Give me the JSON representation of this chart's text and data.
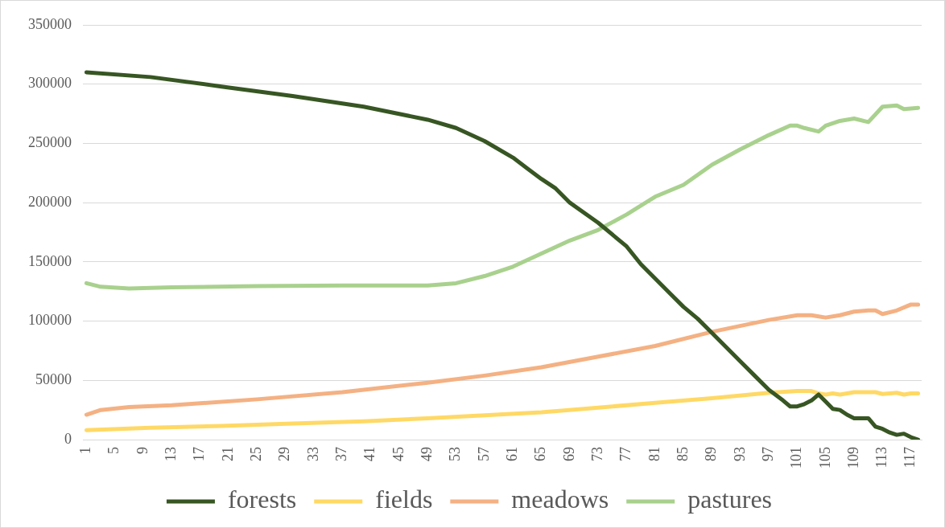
{
  "chart_data": {
    "type": "line",
    "xlim": [
      0.5,
      118.5
    ],
    "xticks": [
      1,
      5,
      9,
      13,
      17,
      21,
      25,
      29,
      33,
      37,
      41,
      45,
      49,
      53,
      57,
      61,
      65,
      69,
      73,
      77,
      81,
      85,
      89,
      93,
      97,
      101,
      105,
      109,
      113,
      117
    ],
    "ylim": [
      0,
      350000
    ],
    "yticks": [
      0,
      50000,
      100000,
      150000,
      200000,
      250000,
      300000,
      350000
    ],
    "grid": "y",
    "legend": "bottom",
    "series": [
      {
        "name": "forests",
        "color": "#375623",
        "x": [
          1,
          10,
          20,
          30,
          40,
          49,
          53,
          57,
          61,
          63,
          65,
          67,
          69,
          73,
          77,
          79,
          81,
          83,
          85,
          87,
          89,
          91,
          93,
          95,
          97,
          99,
          100,
          101,
          102,
          103,
          104,
          105,
          106,
          107,
          108,
          109,
          110,
          111,
          112,
          113,
          114,
          115,
          116,
          117,
          118
        ],
        "values": [
          310000,
          306000,
          298000,
          290000,
          281000,
          270000,
          263000,
          252000,
          238000,
          229000,
          220000,
          212000,
          200000,
          183000,
          163000,
          148000,
          136000,
          124000,
          112000,
          102000,
          90000,
          78000,
          66000,
          54000,
          42000,
          33000,
          28000,
          28000,
          30000,
          33000,
          38000,
          32000,
          26000,
          25000,
          21000,
          18000,
          18000,
          18000,
          11000,
          9000,
          6000,
          4000,
          5000,
          2000,
          0
        ]
      },
      {
        "name": "fields",
        "color": "#ffd966",
        "x": [
          1,
          10,
          20,
          30,
          40,
          49,
          57,
          65,
          73,
          81,
          89,
          97,
          101,
          103,
          104,
          105,
          106,
          107,
          108,
          109,
          110,
          111,
          112,
          113,
          114,
          115,
          116,
          117,
          118
        ],
        "values": [
          8000,
          10000,
          11500,
          13500,
          15500,
          18000,
          20500,
          23000,
          27000,
          31000,
          35000,
          39500,
          41000,
          41000,
          39000,
          38000,
          39000,
          38000,
          39000,
          40000,
          40000,
          40000,
          40000,
          38500,
          39000,
          39500,
          38000,
          39000,
          39000
        ]
      },
      {
        "name": "meadows",
        "color": "#f4b183",
        "x": [
          1,
          3,
          7,
          13,
          25,
          37,
          49,
          57,
          65,
          73,
          81,
          89,
          97,
          101,
          103,
          104,
          105,
          107,
          109,
          111,
          112,
          113,
          115,
          117,
          118
        ],
        "values": [
          21000,
          25000,
          27500,
          29000,
          34000,
          40000,
          48000,
          54000,
          61000,
          70000,
          79000,
          91000,
          101000,
          105000,
          105000,
          104000,
          103000,
          105000,
          108000,
          109000,
          109000,
          106000,
          109000,
          114000,
          114000
        ]
      },
      {
        "name": "pastures",
        "color": "#a9d18e",
        "x": [
          1,
          3,
          7,
          13,
          25,
          37,
          49,
          53,
          57,
          61,
          65,
          69,
          73,
          77,
          81,
          85,
          89,
          93,
          97,
          100,
          101,
          102,
          104,
          105,
          107,
          109,
          111,
          113,
          115,
          116,
          118
        ],
        "values": [
          132000,
          129000,
          127500,
          128500,
          129500,
          130000,
          130000,
          132000,
          138000,
          146000,
          157000,
          168000,
          177000,
          190000,
          205000,
          215000,
          232000,
          245000,
          257000,
          265000,
          265000,
          263000,
          260000,
          265000,
          269000,
          271000,
          268000,
          281000,
          282000,
          279000,
          280000
        ]
      }
    ]
  }
}
